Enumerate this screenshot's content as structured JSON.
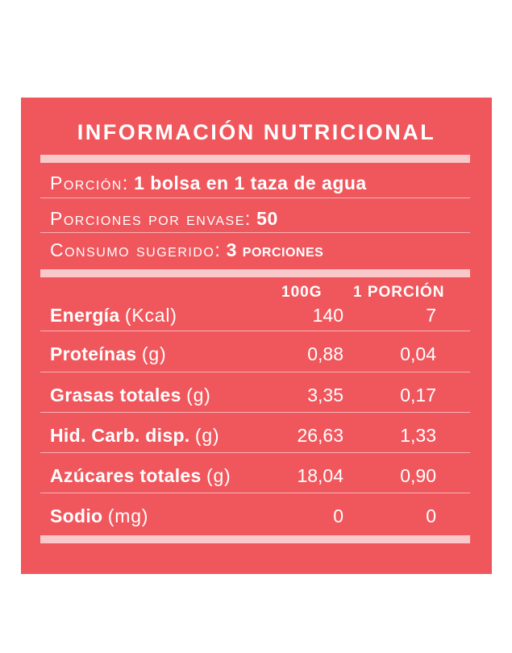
{
  "title": "INFORMACIÓN NUTRICIONAL",
  "serving_info": [
    {
      "label": "Porción:",
      "value": "1 bolsa en 1 taza de agua"
    },
    {
      "label": "Porciones por envase:",
      "value": "50"
    },
    {
      "label": "Consumo sugerido:",
      "value": "3 porciones"
    }
  ],
  "columns": {
    "per100": "100G",
    "perServing": "1 PORCIÓN"
  },
  "nutrients": [
    {
      "name": "Energía",
      "unit": "(Kcal)",
      "per100": "140",
      "perServing": "7"
    },
    {
      "name": "Proteínas",
      "unit": "(g)",
      "per100": "0,88",
      "perServing": "0,04"
    },
    {
      "name": "Grasas totales",
      "unit": "(g)",
      "per100": "3,35",
      "perServing": "0,17"
    },
    {
      "name": "Hid. Carb. disp.",
      "unit": "(g)",
      "per100": "26,63",
      "perServing": "1,33"
    },
    {
      "name": "Azúcares totales",
      "unit": "(g)",
      "per100": "18,04",
      "perServing": "0,90"
    },
    {
      "name": "Sodio",
      "unit": "(mg)",
      "per100": "0",
      "perServing": "0"
    }
  ],
  "colors": {
    "panel": "#f0575d",
    "bar": "#f8c8cb",
    "text": "#ffffff"
  }
}
